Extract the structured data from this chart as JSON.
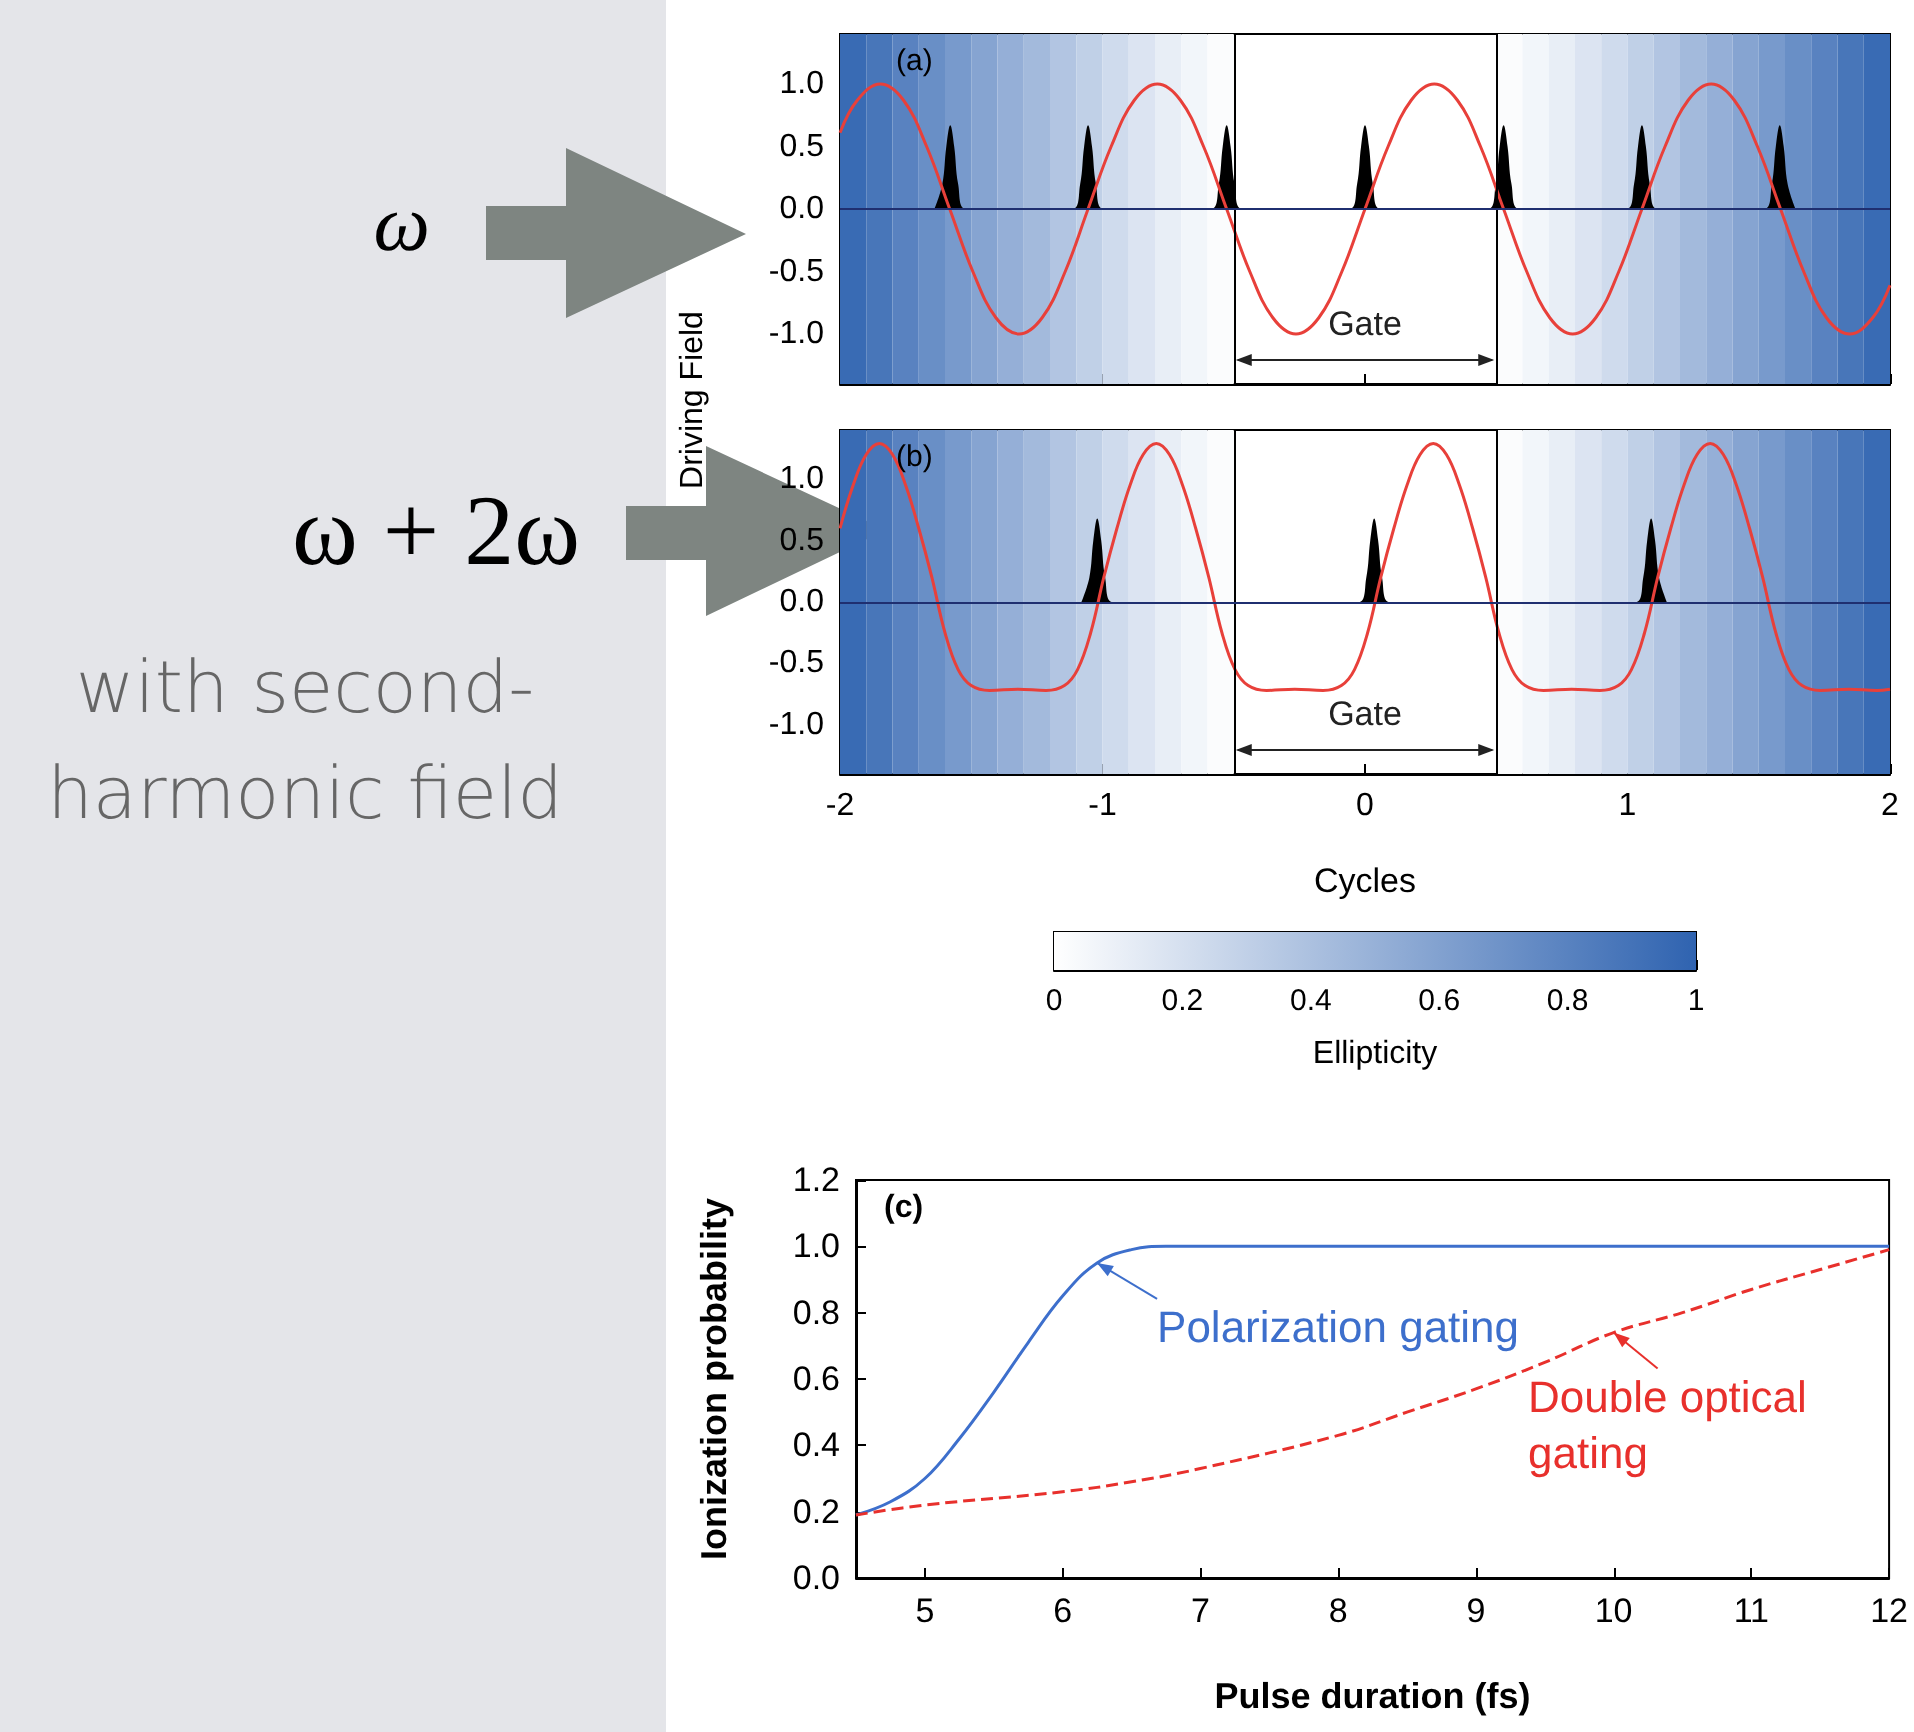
{
  "chart_data": [
    {
      "type": "other",
      "annotations": [
        "ω",
        "ω + 2ω",
        "with second-harmonic field"
      ]
    },
    {
      "type": "line",
      "ylabel": "Driving Field",
      "annotations": [
        "(a)",
        "Gate"
      ],
      "xlim": [
        -2,
        2
      ],
      "xticks": [
        -2,
        -1,
        0,
        1,
        2
      ],
      "ylim": [
        -1.4,
        1.4
      ],
      "yticks": [
        {
          "value": -1,
          "label": "-1.0"
        },
        -0.5,
        {
          "value": 0,
          "label": "0.0"
        },
        0.5,
        {
          "value": 1,
          "label": "1.0"
        }
      ],
      "tick_labels": "y",
      "ref_lines": [
        {
          "axis": "x",
          "value": -0.5,
          "color": "#000000"
        },
        {
          "axis": "x",
          "value": 0.5,
          "color": "#000000"
        },
        {
          "axis": "y",
          "value": 0,
          "color": "#1f2f70"
        }
      ],
      "bands": [
        {
          "axis": "x",
          "from": -2,
          "to": -1.9,
          "color": "#396bb4"
        },
        {
          "axis": "x",
          "from": -1.9,
          "to": -1.8,
          "color": "#4876b9"
        },
        {
          "axis": "x",
          "from": -1.8,
          "to": -1.7,
          "color": "#5982c0"
        },
        {
          "axis": "x",
          "from": -1.7,
          "to": -1.6,
          "color": "#698fc6"
        },
        {
          "axis": "x",
          "from": -1.6,
          "to": -1.5,
          "color": "#789acc"
        },
        {
          "axis": "x",
          "from": -1.5,
          "to": -1.4,
          "color": "#86a4d1"
        },
        {
          "axis": "x",
          "from": -1.4,
          "to": -1.3,
          "color": "#95afd7"
        },
        {
          "axis": "x",
          "from": -1.3,
          "to": -1.2,
          "color": "#a3badc"
        },
        {
          "axis": "x",
          "from": -1.2,
          "to": -1.1,
          "color": "#b2c5e2"
        },
        {
          "axis": "x",
          "from": -1.1,
          "to": -1.0,
          "color": "#c0d0e7"
        },
        {
          "axis": "x",
          "from": -1.0,
          "to": -0.9,
          "color": "#cfdbed"
        },
        {
          "axis": "x",
          "from": -0.9,
          "to": -0.8,
          "color": "#dce4f2"
        },
        {
          "axis": "x",
          "from": -0.8,
          "to": -0.7,
          "color": "#e8eef6"
        },
        {
          "axis": "x",
          "from": -0.7,
          "to": -0.6,
          "color": "#f2f6fa"
        },
        {
          "axis": "x",
          "from": -0.6,
          "to": -0.5,
          "color": "#fbfcfd"
        },
        {
          "axis": "x",
          "from": 0.5,
          "to": 0.6,
          "color": "#fbfcfd"
        },
        {
          "axis": "x",
          "from": 0.6,
          "to": 0.7,
          "color": "#f2f6fa"
        },
        {
          "axis": "x",
          "from": 0.7,
          "to": 0.8,
          "color": "#e8eef6"
        },
        {
          "axis": "x",
          "from": 0.8,
          "to": 0.9,
          "color": "#dce4f2"
        },
        {
          "axis": "x",
          "from": 0.9,
          "to": 1.0,
          "color": "#cfdbed"
        },
        {
          "axis": "x",
          "from": 1.0,
          "to": 1.1,
          "color": "#c0d0e7"
        },
        {
          "axis": "x",
          "from": 1.1,
          "to": 1.2,
          "color": "#b2c5e2"
        },
        {
          "axis": "x",
          "from": 1.2,
          "to": 1.3,
          "color": "#a3badc"
        },
        {
          "axis": "x",
          "from": 1.3,
          "to": 1.4,
          "color": "#95afd7"
        },
        {
          "axis": "x",
          "from": 1.4,
          "to": 1.5,
          "color": "#86a4d1"
        },
        {
          "axis": "x",
          "from": 1.5,
          "to": 1.6,
          "color": "#789acc"
        },
        {
          "axis": "x",
          "from": 1.6,
          "to": 1.7,
          "color": "#698fc6"
        },
        {
          "axis": "x",
          "from": 1.7,
          "to": 1.8,
          "color": "#5982c0"
        },
        {
          "axis": "x",
          "from": 1.8,
          "to": 1.9,
          "color": "#4876b9"
        },
        {
          "axis": "x",
          "from": 1.9,
          "to": 2,
          "color": "#396bb4"
        }
      ],
      "series": [
        {
          "type": "line",
          "color": "#e8403a",
          "x": [
            -2,
            -1.934,
            -1.846,
            -1.758,
            -1.67,
            -1.582,
            -1.494,
            -1.406,
            -1.318,
            -1.23,
            -1.142,
            -1.055,
            -0.967,
            -0.879,
            -0.791,
            -0.703,
            -0.615,
            -0.527,
            -0.439,
            -0.351,
            -0.263,
            -0.176,
            -0.088,
            0,
            0.088,
            0.176,
            0.264,
            0.352,
            0.44,
            0.528,
            0.616,
            0.704,
            0.791,
            0.879,
            0.967,
            1.055,
            1.143,
            1.231,
            1.319,
            1.407,
            1.495,
            1.583,
            1.671,
            1.758,
            1.846,
            1.934,
            2
          ],
          "values": [
            0.61,
            0.87,
            1,
            0.87,
            0.5,
            0,
            -0.5,
            -0.87,
            -1,
            -0.87,
            -0.5,
            0,
            0.5,
            0.87,
            1,
            0.87,
            0.5,
            0,
            -0.5,
            -0.87,
            -1,
            -0.87,
            -0.5,
            0,
            0.5,
            0.87,
            1,
            0.87,
            0.5,
            0,
            -0.5,
            -0.87,
            -1,
            -0.87,
            -0.5,
            0,
            0.5,
            0.87,
            1,
            0.87,
            0.5,
            0,
            -0.5,
            -0.87,
            -1,
            -0.87,
            -0.61
          ]
        },
        {
          "type": "area",
          "color": "#000000",
          "x": [
            -1.64,
            -1.61,
            -1.595,
            -1.58,
            -1.565,
            -1.55,
            -1.52,
            -1.115,
            -1.085,
            -1.07,
            -1.055,
            -1.04,
            -1.025,
            -0.995,
            -0.587,
            -0.557,
            -0.542,
            -0.527,
            -0.512,
            -0.497,
            -0.467,
            -0.06,
            -0.03,
            -0.015,
            0,
            0.015,
            0.03,
            0.06,
            0.468,
            0.498,
            0.513,
            0.528,
            0.543,
            0.558,
            0.588,
            0.995,
            1.025,
            1.04,
            1.055,
            1.07,
            1.085,
            1.115,
            1.52,
            1.55,
            1.565,
            1.58,
            1.595,
            1.61,
            1.64
          ],
          "values": [
            0,
            0.2,
            0.5,
            0.67,
            0.5,
            0.2,
            0,
            0,
            0.2,
            0.5,
            0.67,
            0.5,
            0.2,
            0,
            0,
            0.2,
            0.5,
            0.67,
            0.5,
            0.2,
            0,
            0,
            0.2,
            0.5,
            0.67,
            0.5,
            0.2,
            0,
            0,
            0.2,
            0.5,
            0.67,
            0.5,
            0.2,
            0,
            0,
            0.2,
            0.5,
            0.67,
            0.5,
            0.2,
            0,
            0,
            0.2,
            0.5,
            0.67,
            0.5,
            0.2,
            0
          ]
        }
      ]
    },
    {
      "type": "line",
      "xlabel": "Cycles",
      "annotations": [
        "(b)",
        "Gate"
      ],
      "xlim": [
        -2,
        2
      ],
      "xticks": [
        -2,
        -1,
        0,
        1,
        2
      ],
      "ylim": [
        -1.4,
        1.4
      ],
      "yticks": [
        {
          "value": -1,
          "label": "-1.0"
        },
        -0.5,
        {
          "value": 0,
          "label": "0.0"
        },
        0.5,
        {
          "value": 1,
          "label": "1.0"
        }
      ],
      "clabel": "Ellipticity",
      "clim": [
        0,
        1
      ],
      "cticks": [
        0,
        0.2,
        0.4,
        0.6,
        0.8,
        1
      ],
      "ref_lines": [
        {
          "axis": "x",
          "value": -0.5,
          "color": "#000000"
        },
        {
          "axis": "x",
          "value": 0.5,
          "color": "#000000"
        },
        {
          "axis": "y",
          "value": 0,
          "color": "#1f2f70"
        }
      ],
      "bands": [
        {
          "axis": "x",
          "from": -2,
          "to": -1.9,
          "color": "#396bb4"
        },
        {
          "axis": "x",
          "from": -1.9,
          "to": -1.8,
          "color": "#4876b9"
        },
        {
          "axis": "x",
          "from": -1.8,
          "to": -1.7,
          "color": "#5982c0"
        },
        {
          "axis": "x",
          "from": -1.7,
          "to": -1.6,
          "color": "#698fc6"
        },
        {
          "axis": "x",
          "from": -1.6,
          "to": -1.5,
          "color": "#789acc"
        },
        {
          "axis": "x",
          "from": -1.5,
          "to": -1.4,
          "color": "#86a4d1"
        },
        {
          "axis": "x",
          "from": -1.4,
          "to": -1.3,
          "color": "#95afd7"
        },
        {
          "axis": "x",
          "from": -1.3,
          "to": -1.2,
          "color": "#a3badc"
        },
        {
          "axis": "x",
          "from": -1.2,
          "to": -1.1,
          "color": "#b2c5e2"
        },
        {
          "axis": "x",
          "from": -1.1,
          "to": -1.0,
          "color": "#c0d0e7"
        },
        {
          "axis": "x",
          "from": -1.0,
          "to": -0.9,
          "color": "#cfdbed"
        },
        {
          "axis": "x",
          "from": -0.9,
          "to": -0.8,
          "color": "#dce4f2"
        },
        {
          "axis": "x",
          "from": -0.8,
          "to": -0.7,
          "color": "#e8eef6"
        },
        {
          "axis": "x",
          "from": -0.7,
          "to": -0.6,
          "color": "#f2f6fa"
        },
        {
          "axis": "x",
          "from": -0.6,
          "to": -0.5,
          "color": "#fbfcfd"
        },
        {
          "axis": "x",
          "from": 0.5,
          "to": 0.6,
          "color": "#fbfcfd"
        },
        {
          "axis": "x",
          "from": 0.6,
          "to": 0.7,
          "color": "#f2f6fa"
        },
        {
          "axis": "x",
          "from": 0.7,
          "to": 0.8,
          "color": "#e8eef6"
        },
        {
          "axis": "x",
          "from": 0.8,
          "to": 0.9,
          "color": "#dce4f2"
        },
        {
          "axis": "x",
          "from": 0.9,
          "to": 1.0,
          "color": "#cfdbed"
        },
        {
          "axis": "x",
          "from": 1.0,
          "to": 1.1,
          "color": "#c0d0e7"
        },
        {
          "axis": "x",
          "from": 1.1,
          "to": 1.2,
          "color": "#b2c5e2"
        },
        {
          "axis": "x",
          "from": 1.2,
          "to": 1.3,
          "color": "#a3badc"
        },
        {
          "axis": "x",
          "from": 1.3,
          "to": 1.4,
          "color": "#95afd7"
        },
        {
          "axis": "x",
          "from": 1.4,
          "to": 1.5,
          "color": "#86a4d1"
        },
        {
          "axis": "x",
          "from": 1.5,
          "to": 1.6,
          "color": "#789acc"
        },
        {
          "axis": "x",
          "from": 1.6,
          "to": 1.7,
          "color": "#698fc6"
        },
        {
          "axis": "x",
          "from": 1.7,
          "to": 1.8,
          "color": "#5982c0"
        },
        {
          "axis": "x",
          "from": 1.8,
          "to": 1.9,
          "color": "#4876b9"
        },
        {
          "axis": "x",
          "from": 1.9,
          "to": 2,
          "color": "#396bb4"
        }
      ],
      "series": [
        {
          "type": "line",
          "color": "#e8403a",
          "x": [
            -2,
            -1.95,
            -1.9,
            -1.85,
            -1.8,
            -1.75,
            -1.7,
            -1.65,
            -1.6,
            -1.55,
            -1.5,
            -1.43,
            -1.3225,
            -1.215,
            -1.145,
            -1.095,
            -1.045,
            -0.995,
            -0.945,
            -0.895,
            -0.845,
            -0.795,
            -0.745,
            -0.695,
            -0.645,
            -0.595,
            -0.545,
            -0.495,
            -0.445,
            -0.375,
            -0.2675,
            -0.16,
            -0.09,
            -0.04,
            0.01,
            0.06,
            0.11,
            0.16,
            0.21,
            0.26,
            0.31,
            0.36,
            0.41,
            0.46,
            0.51,
            0.56,
            0.61,
            0.68,
            0.7875,
            0.895,
            0.965,
            1.015,
            1.065,
            1.115,
            1.165,
            1.215,
            1.265,
            1.315,
            1.365,
            1.415,
            1.465,
            1.515,
            1.565,
            1.615,
            1.665,
            1.735,
            1.8425,
            1.95,
            2
          ],
          "values": [
            0.6,
            0.95,
            1.2,
            1.29,
            1.2,
            0.95,
            0.6,
            0.2,
            -0.25,
            -0.55,
            -0.68,
            -0.72,
            -0.71,
            -0.72,
            -0.68,
            -0.55,
            -0.25,
            0.2,
            0.6,
            0.95,
            1.2,
            1.29,
            1.2,
            0.95,
            0.6,
            0.2,
            -0.25,
            -0.55,
            -0.68,
            -0.72,
            -0.71,
            -0.72,
            -0.68,
            -0.55,
            -0.25,
            0.2,
            0.6,
            0.95,
            1.2,
            1.29,
            1.2,
            0.95,
            0.6,
            0.2,
            -0.25,
            -0.55,
            -0.68,
            -0.72,
            -0.71,
            -0.72,
            -0.68,
            -0.55,
            -0.25,
            0.2,
            0.6,
            0.95,
            1.2,
            1.29,
            1.2,
            0.95,
            0.6,
            0.2,
            -0.25,
            -0.55,
            -0.68,
            -0.72,
            -0.71,
            -0.72,
            -0.71
          ]
        },
        {
          "type": "area",
          "color": "#000000",
          "x": [
            -1.08,
            -1.05,
            -1.035,
            -1.02,
            -1.005,
            -0.99,
            -0.96,
            -0.025,
            0.005,
            0.02,
            0.035,
            0.05,
            0.065,
            0.095,
            1.03,
            1.06,
            1.075,
            1.09,
            1.105,
            1.12,
            1.15
          ],
          "values": [
            0,
            0.2,
            0.5,
            0.68,
            0.5,
            0.2,
            0,
            0,
            0.2,
            0.5,
            0.68,
            0.5,
            0.2,
            0,
            0,
            0.2,
            0.5,
            0.68,
            0.5,
            0.2,
            0
          ]
        }
      ]
    },
    {
      "type": "line",
      "xlabel": "Pulse duration (fs)",
      "ylabel": "Ionization probability",
      "annotations": [
        "(c)",
        {
          "text": "Polarization gating",
          "x": 6.25,
          "y": 0.95
        },
        {
          "text": "Double optical gating",
          "x": 10,
          "y": 0.74
        }
      ],
      "xlim": [
        4.5,
        12
      ],
      "xticks": [
        5,
        6,
        7,
        8,
        9,
        10,
        11,
        12
      ],
      "ylim": [
        0,
        1.2
      ],
      "yticks": [
        {
          "value": 0,
          "label": "0.0"
        },
        0.2,
        0.4,
        0.6,
        0.8,
        {
          "value": 1,
          "label": "1.0"
        },
        {
          "value": 1.2,
          "label": "1.2"
        }
      ],
      "series": [
        {
          "color": "#3d6fcc",
          "x": [
            4.5,
            4.75,
            5,
            5.25,
            5.5,
            5.75,
            6,
            6.25,
            6.5,
            6.75,
            7,
            12
          ],
          "values": [
            0.19,
            0.23,
            0.3,
            0.42,
            0.56,
            0.71,
            0.85,
            0.95,
            0.99,
            1,
            1,
            1
          ]
        },
        {
          "color": "#e8302c",
          "line_style": "dashed",
          "x": [
            4.5,
            5,
            6,
            6.5,
            7,
            8,
            8.5,
            9,
            9.5,
            10,
            10.5,
            11,
            11.5,
            12
          ],
          "values": [
            0.19,
            0.22,
            0.26,
            0.29,
            0.33,
            0.43,
            0.5,
            0.57,
            0.65,
            0.74,
            0.8,
            0.87,
            0.93,
            0.99
          ]
        }
      ]
    }
  ]
}
